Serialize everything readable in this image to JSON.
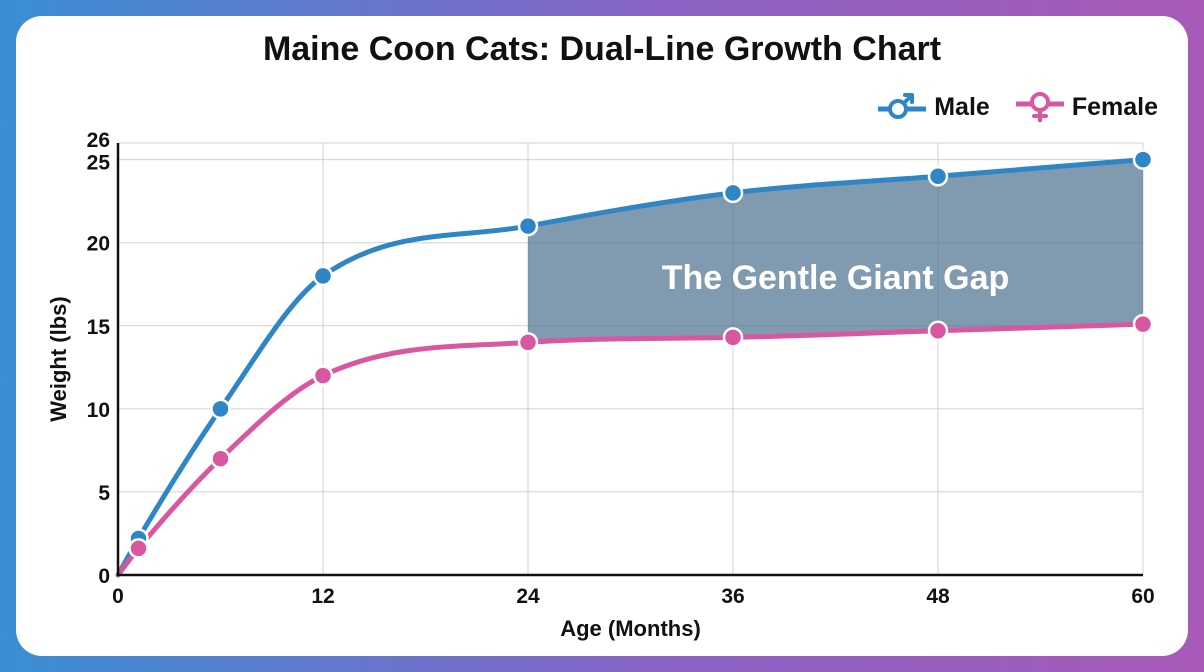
{
  "colors": {
    "male": "#2f86c6",
    "female": "#d957a0",
    "gap_fill": "#4f7392",
    "grid": "#d0d0d0"
  },
  "legend": {
    "male_label": "Male",
    "female_label": "Female",
    "male_icon": "male-symbol-icon",
    "female_icon": "female-symbol-icon",
    "placement": "top-right"
  },
  "chart_data": {
    "type": "line",
    "title": "Maine Coon Cats: Dual-Line Growth Chart",
    "xlabel": "Age (Months)",
    "ylabel": "Weight (lbs)",
    "xlim": [
      0,
      60
    ],
    "ylim": [
      0,
      26
    ],
    "x_ticks": [
      0,
      12,
      24,
      36,
      48,
      60
    ],
    "y_ticks": [
      0,
      5,
      10,
      15,
      20,
      25,
      26
    ],
    "grid": true,
    "series": [
      {
        "name": "Male",
        "x": [
          0,
          1.2,
          6,
          12,
          24,
          36,
          48,
          60
        ],
        "y": [
          0,
          2.2,
          10,
          18,
          21,
          23,
          24,
          25
        ],
        "markers": [
          false,
          true,
          true,
          true,
          true,
          true,
          true,
          true
        ]
      },
      {
        "name": "Female",
        "x": [
          0,
          1.2,
          6,
          12,
          24,
          36,
          48,
          60
        ],
        "y": [
          0,
          1.6,
          7,
          12,
          14,
          14.3,
          14.7,
          15.1
        ],
        "markers": [
          false,
          true,
          true,
          true,
          true,
          true,
          true,
          true
        ]
      }
    ],
    "shaded_region": {
      "between": [
        "Male",
        "Female"
      ],
      "x_range": [
        24,
        60
      ],
      "label": "The Gentle Giant Gap"
    }
  }
}
